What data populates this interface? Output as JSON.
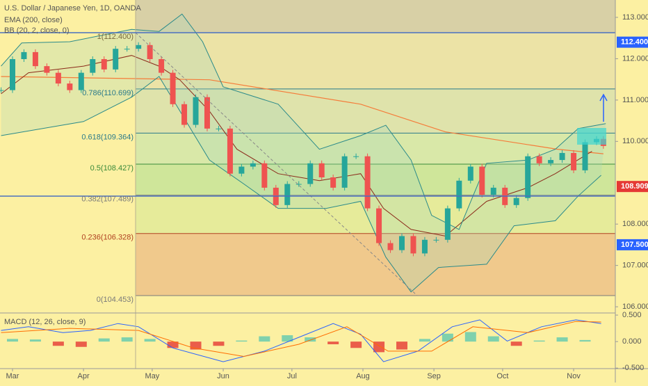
{
  "header": {
    "symbol": "U.S. Dollar / Japanese Yen, 1D, OANDA",
    "indicators": [
      "EMA (200, close)",
      "BB (20, 2, close, 0)"
    ],
    "macd_title": "MACD (12, 26, close, 9)"
  },
  "chart_data": {
    "type": "candlestick",
    "xlim": [
      -5.46,
      263.2
    ],
    "xticks": [
      {
        "value": 0,
        "label": "Mar"
      },
      {
        "value": 31,
        "label": "Apr"
      },
      {
        "value": 61,
        "label": "May"
      },
      {
        "value": 92,
        "label": "Jun"
      },
      {
        "value": 122,
        "label": "Jul"
      },
      {
        "value": 153,
        "label": "Aug"
      },
      {
        "value": 184,
        "label": "Sep"
      },
      {
        "value": 214,
        "label": "Oct"
      },
      {
        "value": 245,
        "label": "Nov"
      }
    ],
    "ylim": [
      105.85,
      113.42
    ],
    "yticks": [
      {
        "value": 113,
        "label": "113.000"
      },
      {
        "value": 112,
        "label": "112.000"
      },
      {
        "value": 111,
        "label": "111.000"
      },
      {
        "value": 110,
        "label": "110.000"
      },
      {
        "value": 108,
        "label": "108.000"
      },
      {
        "value": 107,
        "label": "107.000"
      },
      {
        "value": 106,
        "label": "106.000"
      }
    ],
    "price_labels": [
      {
        "value": 112.4,
        "label": "112.400",
        "color": "#2962ff"
      },
      {
        "value": 108.909,
        "label": "108.909",
        "color": "#e53935"
      },
      {
        "value": 107.5,
        "label": "107.500",
        "color": "#2962ff"
      }
    ],
    "up_color": "#26a69a",
    "down_color": "#ef5350",
    "price": {
      "x": [
        -5,
        0,
        5,
        10,
        15,
        20,
        25,
        30,
        35,
        40,
        45,
        50,
        55,
        60,
        65,
        70,
        75,
        80,
        85,
        90,
        95,
        100,
        105,
        110,
        115,
        120,
        125,
        130,
        135,
        140,
        145,
        150,
        155,
        160,
        165,
        170,
        175,
        180,
        185,
        190,
        195,
        200,
        205,
        210,
        215,
        220,
        225,
        230,
        235,
        240,
        245,
        250,
        255,
        258
      ],
      "values": [
        111.24,
        111.99,
        112.16,
        111.82,
        111.66,
        111.4,
        111.24,
        111.66,
        111.99,
        111.74,
        112.24,
        112.24,
        112.33,
        111.99,
        111.66,
        110.9,
        110.4,
        111.07,
        110.31,
        110.31,
        109.22,
        109.39,
        109.47,
        108.88,
        108.46,
        108.97,
        108.97,
        109.47,
        109.13,
        108.88,
        109.64,
        109.64,
        108.38,
        107.54,
        107.37,
        107.71,
        107.29,
        107.62,
        107.62,
        108.38,
        109.05,
        109.39,
        108.71,
        108.88,
        108.46,
        108.63,
        109.64,
        109.47,
        109.55,
        109.72,
        109.3,
        109.98,
        110.06,
        109.89
      ]
    },
    "series": [
      {
        "name": "EMA (200, close)",
        "color": "#f57c3a",
        "x": [
          -5,
          86,
          152,
          189,
          238,
          258
        ],
        "values": [
          111.57,
          111.49,
          110.9,
          110.23,
          109.81,
          109.7
        ]
      },
      {
        "name": "BB basis",
        "color": "#8b2a1a",
        "x": [
          -5,
          7,
          31,
          52,
          64,
          73,
          86,
          98,
          116,
          134,
          152,
          162,
          174,
          189,
          207,
          225,
          237,
          253
        ],
        "values": [
          111.15,
          111.66,
          111.82,
          112.08,
          111.82,
          111.49,
          110.73,
          109.81,
          109.22,
          109.05,
          109.22,
          108.38,
          107.87,
          107.71,
          108.55,
          108.88,
          109.22,
          109.76
        ]
      },
      {
        "name": "BB upper",
        "color": "#2a8a8a",
        "x": [
          -5,
          4,
          25,
          52,
          64,
          74,
          83,
          92,
          116,
          134,
          152,
          163,
          174,
          183,
          195,
          207,
          225,
          237,
          247,
          259
        ],
        "values": [
          111.82,
          112.38,
          112.41,
          112.71,
          112.66,
          113.08,
          112.41,
          111.32,
          110.9,
          109.81,
          110.14,
          110.39,
          109.55,
          108.21,
          107.87,
          109.47,
          109.55,
          109.81,
          110.31,
          110.43
        ]
      },
      {
        "name": "BB lower",
        "color": "#2a8a8a",
        "x": [
          -5,
          13,
          31,
          52,
          64,
          86,
          101,
          116,
          137,
          152,
          163,
          174,
          186,
          207,
          219,
          237,
          247,
          257
        ],
        "values": [
          110.14,
          110.31,
          110.48,
          111.07,
          111.57,
          109.55,
          108.97,
          108.38,
          108.38,
          108.55,
          107.2,
          106.36,
          106.95,
          107.03,
          107.96,
          108.08,
          108.68,
          109.18
        ]
      }
    ],
    "fib_levels": [
      {
        "value": 1,
        "label": "1(112.400)",
        "color": "#7a6a40"
      },
      {
        "value": 0.786,
        "label": "0.786(110.699)",
        "color": "#2a7a8a"
      },
      {
        "value": 0.618,
        "label": "0.618(109.364)",
        "color": "#2a7a8a"
      },
      {
        "value": 0.5,
        "label": "0.5(108.427)",
        "color": "#3a8a3a"
      },
      {
        "value": 0.382,
        "label": "0.382(107.489)",
        "color": "#7a7a7a"
      },
      {
        "value": 0.236,
        "label": "0.236(106.328)",
        "color": "#b04020"
      },
      {
        "value": 0,
        "label": "0(104.453)",
        "color": "#7a7a7a"
      }
    ],
    "fib_band_colors": [
      "#ece3a6",
      "#dfe3ab",
      "#d9e8a8",
      "#cfe69a",
      "#e6eb9a",
      "#f0c98c"
    ],
    "macd": {
      "ylim": [
        -0.51,
        0.54
      ],
      "yticks": [
        {
          "value": 0.5,
          "label": "0.500"
        },
        {
          "value": 0,
          "label": "0.000"
        },
        {
          "value": -0.5,
          "label": "-0.500"
        }
      ],
      "hist_up_color": "#5fc9b0",
      "hist_down_color": "#e53935",
      "hist_x": [
        0,
        10,
        20,
        30,
        40,
        50,
        60,
        70,
        80,
        90,
        100,
        110,
        120,
        130,
        140,
        150,
        160,
        170,
        180,
        190,
        200,
        210,
        220,
        230,
        240,
        250
      ],
      "hist": [
        0.05,
        0.04,
        -0.08,
        -0.1,
        0.06,
        0.08,
        0.05,
        -0.12,
        -0.15,
        -0.08,
        0.02,
        0.1,
        0.12,
        0.08,
        -0.05,
        -0.12,
        -0.2,
        -0.15,
        0.05,
        0.15,
        0.18,
        0.1,
        -0.08,
        0.02,
        0.08,
        0.03
      ],
      "series": [
        {
          "name": "MACD",
          "color": "#2962ff",
          "x": [
            -5,
            7,
            22,
            34,
            46,
            55,
            70,
            92,
            110,
            125,
            140,
            152,
            162,
            177,
            192,
            204,
            216,
            231,
            246,
            257
          ],
          "values": [
            0.21,
            0.28,
            0.17,
            0.21,
            0.34,
            0.28,
            -0.12,
            -0.38,
            -0.18,
            0.08,
            0.34,
            0.14,
            -0.38,
            -0.18,
            0.28,
            0.41,
            0.01,
            0.28,
            0.41,
            0.34
          ]
        },
        {
          "name": "Signal",
          "color": "#ff6d00",
          "x": [
            -5,
            25,
            55,
            79,
            101,
            125,
            146,
            164,
            183,
            201,
            225,
            246,
            257
          ],
          "values": [
            0.17,
            0.25,
            0.21,
            -0.12,
            -0.28,
            -0.05,
            0.28,
            -0.18,
            -0.18,
            0.28,
            0.17,
            0.38,
            0.37
          ]
        }
      ]
    }
  }
}
